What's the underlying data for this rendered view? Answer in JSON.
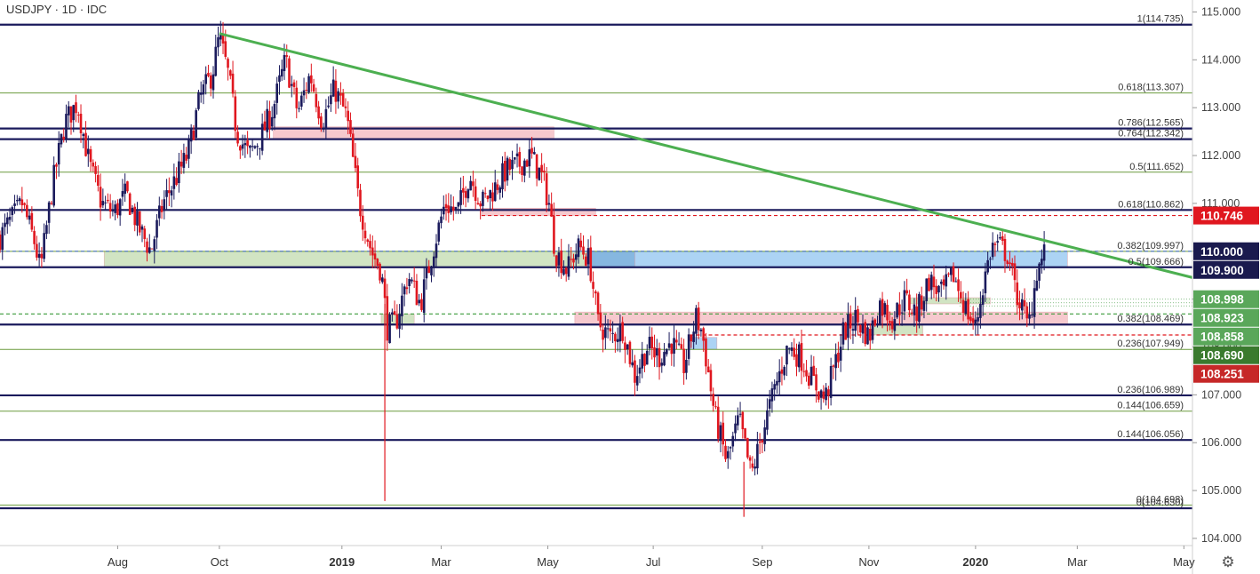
{
  "chart_title": "USDJPY · 1D · IDC",
  "colors": {
    "bull": "#1a1a5c",
    "bear": "#e0171f",
    "trendline": "#4caf50",
    "fib_line": "#6b9b3e",
    "major_line": "#1a1a5c",
    "pink_zone": "#f5c0c5",
    "blue_zone": "#9ecbf2",
    "green_zone": "#c9dfb8",
    "tag_dark": "#1a1a4e",
    "tag_red": "#e0171f",
    "tag_green": "#5aa75a",
    "tag_darkgreen": "#3a7a2e",
    "tag_darkred": "#c62828"
  },
  "icons": {
    "settings": "gear-icon"
  },
  "chart_data": {
    "type": "candlestick",
    "symbol": "USDJPY",
    "timeframe": "1D",
    "source": "IDC",
    "ylim": [
      103.85,
      115.25
    ],
    "y_ticks": [
      "104.000",
      "105.000",
      "106.000",
      "107.000",
      "108.000",
      "109.000",
      "110.000",
      "111.000",
      "112.000",
      "113.000",
      "114.000",
      "115.000"
    ],
    "x_ticks": [
      {
        "label": "Aug",
        "t": 8.3,
        "bold": false
      },
      {
        "label": "Oct",
        "t": 16.6,
        "bold": false
      },
      {
        "label": "2019",
        "t": 26.6,
        "bold": true
      },
      {
        "label": "Mar",
        "t": 34.7,
        "bold": false
      },
      {
        "label": "May",
        "t": 43.4,
        "bold": false
      },
      {
        "label": "Jul",
        "t": 52.0,
        "bold": false
      },
      {
        "label": "Sep",
        "t": 60.9,
        "bold": false
      },
      {
        "label": "Nov",
        "t": 69.6,
        "bold": false
      },
      {
        "label": "2020",
        "t": 78.3,
        "bold": true
      },
      {
        "label": "Mar",
        "t": 86.6,
        "bold": false
      },
      {
        "label": "May",
        "t": 95.3,
        "bold": false
      }
    ],
    "t_range": [
      -1.3,
      96.0
    ],
    "price_path": [
      [
        -1.3,
        110.3
      ],
      [
        0.5,
        111.0
      ],
      [
        1.5,
        110.2
      ],
      [
        2.0,
        109.6
      ],
      [
        3.0,
        111.4
      ],
      [
        4.0,
        112.7
      ],
      [
        5.0,
        113.1
      ],
      [
        6.0,
        111.8
      ],
      [
        7.0,
        111.0
      ],
      [
        8.0,
        110.8
      ],
      [
        9.0,
        111.2
      ],
      [
        10.0,
        110.5
      ],
      [
        11.0,
        110.0
      ],
      [
        12.0,
        111.0
      ],
      [
        13.0,
        111.5
      ],
      [
        14.0,
        112.0
      ],
      [
        15.0,
        113.2
      ],
      [
        16.0,
        113.7
      ],
      [
        16.6,
        114.5
      ],
      [
        17.4,
        113.6
      ],
      [
        18.0,
        112.5
      ],
      [
        19.0,
        112.0
      ],
      [
        20.0,
        112.4
      ],
      [
        21.0,
        113.0
      ],
      [
        22.0,
        114.0
      ],
      [
        23.0,
        112.9
      ],
      [
        24.0,
        113.7
      ],
      [
        25.0,
        112.7
      ],
      [
        26.0,
        113.4
      ],
      [
        27.0,
        112.8
      ],
      [
        28.0,
        111.0
      ],
      [
        29.0,
        110.0
      ],
      [
        29.8,
        109.6
      ],
      [
        30.3,
        108.4
      ],
      [
        31.0,
        108.5
      ],
      [
        32.0,
        109.5
      ],
      [
        33.0,
        108.9
      ],
      [
        34.0,
        110.0
      ],
      [
        35.0,
        111.0
      ],
      [
        36.0,
        110.8
      ],
      [
        37.0,
        111.6
      ],
      [
        38.0,
        111.0
      ],
      [
        39.0,
        111.3
      ],
      [
        40.0,
        111.7
      ],
      [
        41.0,
        111.8
      ],
      [
        42.0,
        112.0
      ],
      [
        43.0,
        111.5
      ],
      [
        43.5,
        111.0
      ],
      [
        44.0,
        110.0
      ],
      [
        45.0,
        109.6
      ],
      [
        45.5,
        109.9
      ],
      [
        46.0,
        110.1
      ],
      [
        46.8,
        109.8
      ],
      [
        47.5,
        108.5
      ],
      [
        48.5,
        108.2
      ],
      [
        49.5,
        108.4
      ],
      [
        50.5,
        107.4
      ],
      [
        51.5,
        108.0
      ],
      [
        52.5,
        107.8
      ],
      [
        53.5,
        108.1
      ],
      [
        54.5,
        107.6
      ],
      [
        55.5,
        108.6
      ],
      [
        56.0,
        108.3
      ],
      [
        57.0,
        106.6
      ],
      [
        58.0,
        105.6
      ],
      [
        59.0,
        106.5
      ],
      [
        60.0,
        105.3
      ],
      [
        60.9,
        106.2
      ],
      [
        62.0,
        107.2
      ],
      [
        63.0,
        108.0
      ],
      [
        64.0,
        107.8
      ],
      [
        65.0,
        107.3
      ],
      [
        66.0,
        106.9
      ],
      [
        66.8,
        107.6
      ],
      [
        67.5,
        108.3
      ],
      [
        68.5,
        108.6
      ],
      [
        69.6,
        108.2
      ],
      [
        70.5,
        108.9
      ],
      [
        71.5,
        108.6
      ],
      [
        72.5,
        109.0
      ],
      [
        73.5,
        108.7
      ],
      [
        74.5,
        109.4
      ],
      [
        75.5,
        109.1
      ],
      [
        76.5,
        109.5
      ],
      [
        77.5,
        108.8
      ],
      [
        78.3,
        108.4
      ],
      [
        79.0,
        109.4
      ],
      [
        79.6,
        110.1
      ],
      [
        80.3,
        110.1
      ],
      [
        81.0,
        109.9
      ],
      [
        81.5,
        109.2
      ],
      [
        82.0,
        108.9
      ],
      [
        82.6,
        108.4
      ],
      [
        83.3,
        109.6
      ],
      [
        83.9,
        109.95
      ]
    ],
    "special_spikes": [
      {
        "t": 30.1,
        "high": 108.9,
        "low": 104.78
      },
      {
        "t": 59.4,
        "high": 105.6,
        "low": 104.45
      }
    ],
    "trendline": {
      "start": [
        16.6,
        114.55
      ],
      "end": [
        96.0,
        109.45
      ]
    },
    "fib_levels": [
      {
        "label": "1(114.735)",
        "value": 114.735
      },
      {
        "label": "0.618(113.307)",
        "value": 113.307
      },
      {
        "label": "0.786(112.565)",
        "value": 112.565
      },
      {
        "label": "0.764(112.342)",
        "value": 112.342
      },
      {
        "label": "0.5(111.652)",
        "value": 111.652
      },
      {
        "label": "0.618(110.862)",
        "value": 110.862
      },
      {
        "label": "0.382(109.997)",
        "value": 109.997
      },
      {
        "label": "0.5(109.666)",
        "value": 109.666
      },
      {
        "label": "0.382(108.469)",
        "value": 108.469
      },
      {
        "label": "0.236(107.949)",
        "value": 107.949
      },
      {
        "label": "0.236(106.989)",
        "value": 106.989
      },
      {
        "label": "0.144(106.659)",
        "value": 106.659
      },
      {
        "label": "0.144(106.056)",
        "value": 106.056
      },
      {
        "label": "0(104.698)",
        "value": 104.698
      },
      {
        "label": "0(104.630)",
        "value": 104.63
      }
    ],
    "price_tags": [
      {
        "label": "110.746",
        "value": 110.746,
        "color": "#e0171f"
      },
      {
        "label": "110.000",
        "value": 110.0,
        "color": "#1a1a4e"
      },
      {
        "label": "109.900",
        "value": 109.9,
        "color": "#1a1a4e"
      },
      {
        "label": "108.998",
        "value": 108.998,
        "color": "#5aa75a"
      },
      {
        "label": "108.923",
        "value": 108.923,
        "color": "#5aa75a"
      },
      {
        "label": "108.858",
        "value": 108.858,
        "color": "#5aa75a"
      },
      {
        "label": "108.690",
        "value": 108.69,
        "color": "#3a7a2e"
      },
      {
        "label": "108.251",
        "value": 108.251,
        "color": "#c62828"
      }
    ]
  }
}
